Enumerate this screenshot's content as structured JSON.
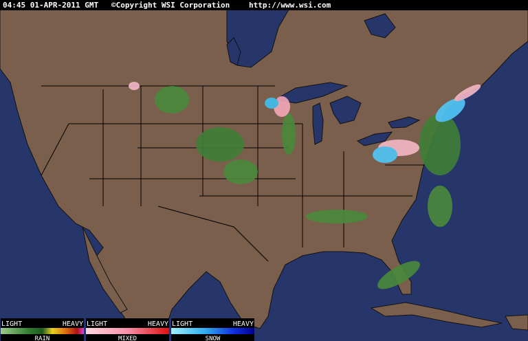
{
  "header": {
    "time": "04:45 01-APR-2011 GMT",
    "copyright": "©Copyright WSI Corporation",
    "url": "http://www.wsi.com"
  },
  "legend": [
    {
      "light": "LIGHT",
      "heavy": "HEAVY",
      "label": "RAIN"
    },
    {
      "light": "LIGHT",
      "heavy": "HEAVY",
      "label": "MIXED"
    },
    {
      "light": "LIGHT",
      "heavy": "HEAVY",
      "label": "SNOW"
    }
  ]
}
